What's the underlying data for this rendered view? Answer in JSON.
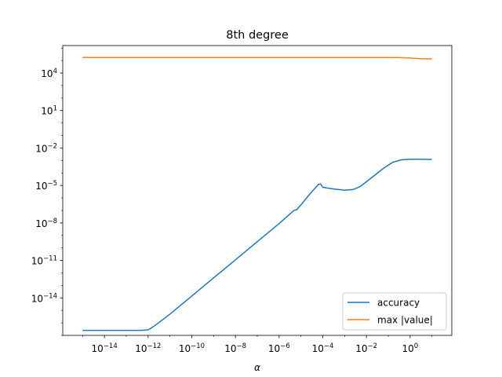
{
  "chart_data": {
    "type": "line",
    "title": "8th degree",
    "xlabel": "α",
    "ylabel": "",
    "xscale": "log",
    "yscale": "log",
    "xlim_exp": [
      -15.91,
      1.91
    ],
    "ylim_exp": [
      -17.0,
      6.2
    ],
    "x_ticks": [
      {
        "exp": -14,
        "label": "10",
        "sup": "−14"
      },
      {
        "exp": -12,
        "label": "10",
        "sup": "−12"
      },
      {
        "exp": -10,
        "label": "10",
        "sup": "−10"
      },
      {
        "exp": -8,
        "label": "10",
        "sup": "−8"
      },
      {
        "exp": -6,
        "label": "10",
        "sup": "−6"
      },
      {
        "exp": -4,
        "label": "10",
        "sup": "−4"
      },
      {
        "exp": -2,
        "label": "10",
        "sup": "−2"
      },
      {
        "exp": 0,
        "label": "10",
        "sup": "0"
      }
    ],
    "y_ticks": [
      {
        "exp": 4,
        "label": "10",
        "sup": "4"
      },
      {
        "exp": 1,
        "label": "10",
        "sup": "1"
      },
      {
        "exp": -2,
        "label": "10",
        "sup": "−2"
      },
      {
        "exp": -5,
        "label": "10",
        "sup": "−5"
      },
      {
        "exp": -8,
        "label": "10",
        "sup": "−8"
      },
      {
        "exp": -11,
        "label": "10",
        "sup": "−11"
      },
      {
        "exp": -14,
        "label": "10",
        "sup": "−14"
      }
    ],
    "legend_position": "lower right",
    "series": [
      {
        "name": "accuracy",
        "color": "#1f77b4",
        "x_log10": [
          -15,
          -14,
          -13,
          -12.3,
          -12.0,
          -11.85,
          -11.6,
          -11.3,
          -11,
          -10,
          -9,
          -8,
          -7,
          -6,
          -5.32,
          -5.2,
          -5.0,
          -4.6,
          -4.2,
          -4.1,
          -4.0,
          -3.5,
          -3.0,
          -2.6,
          -2.3,
          -2.0,
          -1.6,
          -1.2,
          -0.8,
          -0.4,
          0,
          0.5,
          1.0
        ],
        "y_log10": [
          -16.6,
          -16.6,
          -16.6,
          -16.6,
          -16.55,
          -16.4,
          -16.1,
          -15.7,
          -15.3,
          -13.85,
          -12.4,
          -10.95,
          -9.5,
          -8.05,
          -7.0,
          -6.95,
          -6.55,
          -5.7,
          -4.92,
          -4.88,
          -5.15,
          -5.28,
          -5.38,
          -5.32,
          -5.1,
          -4.7,
          -4.15,
          -3.6,
          -3.15,
          -2.95,
          -2.9,
          -2.9,
          -2.92
        ]
      },
      {
        "name": "max |value|",
        "color": "#ff7f0e",
        "x_log10": [
          -15,
          -10,
          -5,
          -1,
          -0.5,
          0,
          0.5,
          1.0
        ],
        "y_log10": [
          5.25,
          5.25,
          5.25,
          5.25,
          5.24,
          5.2,
          5.15,
          5.13
        ]
      }
    ]
  }
}
